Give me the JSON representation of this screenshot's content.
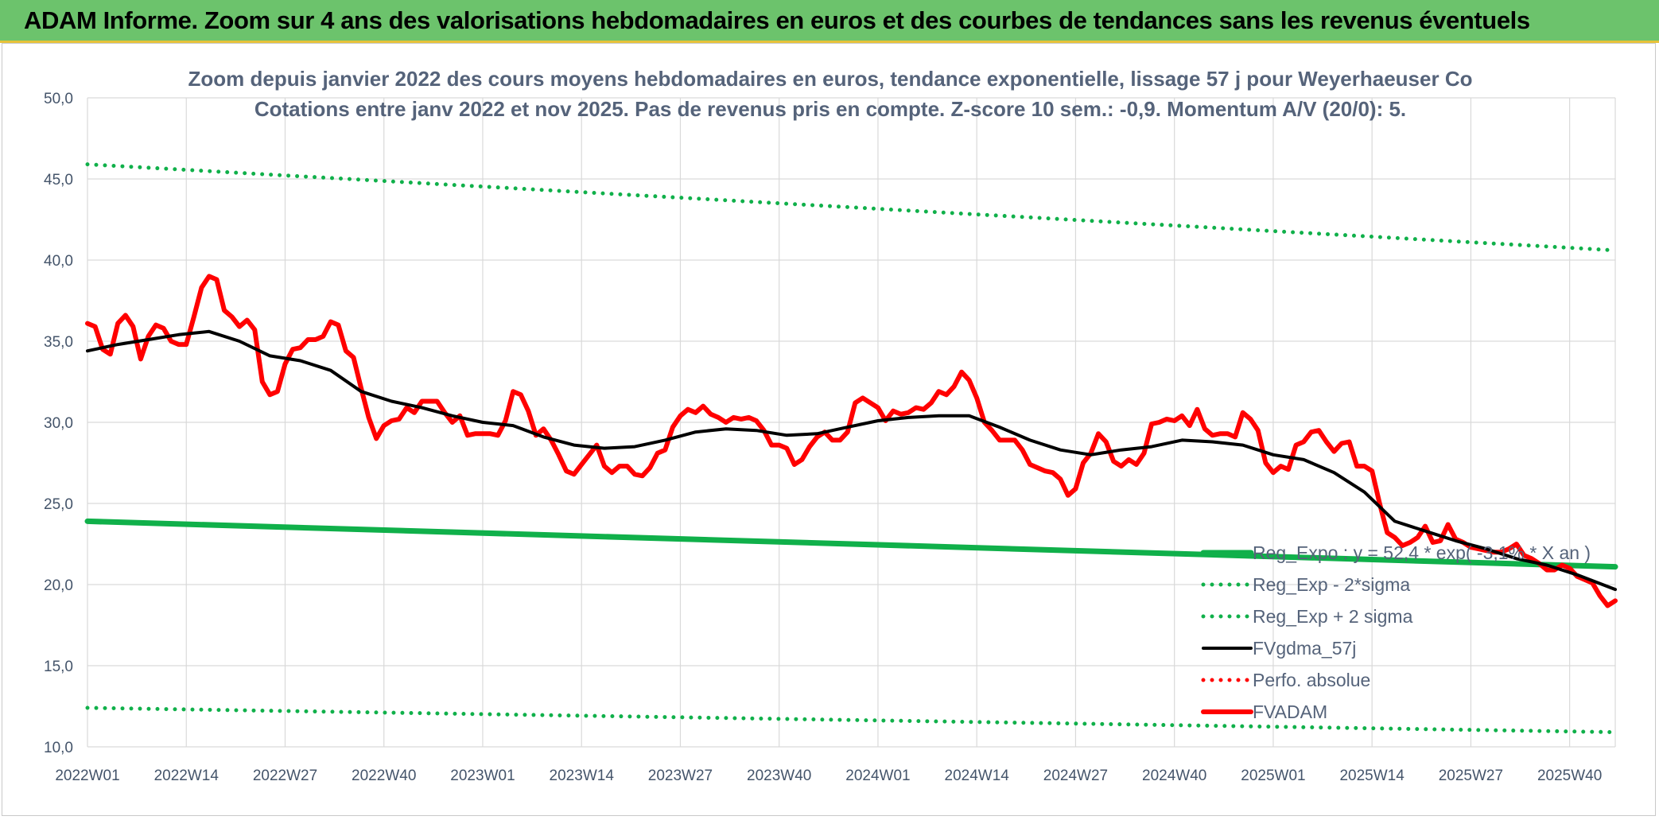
{
  "header": {
    "title": "ADAM Informe. Zoom sur 4 ans des valorisations hebdomadaires en euros et des courbes de tendances sans les revenus éventuels"
  },
  "colors": {
    "green": "#10b04a",
    "red": "#ff0000",
    "black": "#000000",
    "grid": "#d9d9d9",
    "banner": "#6cc36c"
  },
  "chart_data": {
    "type": "line",
    "title_line1": "Zoom depuis janvier 2022 des cours moyens hebdomadaires en euros, tendance exponentielle, lissage 57 j pour Weyerhaeuser Co",
    "title_line2": "Cotations entre janv 2022 et nov 2025. Pas de revenus pris en compte. Z-score 10 sem.: -0,9. Momentum A/V (20/0): 5.",
    "ylim": [
      10,
      50
    ],
    "y_ticks": [
      "10,0",
      "15,0",
      "20,0",
      "25,0",
      "30,0",
      "35,0",
      "40,0",
      "45,0",
      "50,0"
    ],
    "y_tick_values": [
      10,
      15,
      20,
      25,
      30,
      35,
      40,
      45,
      50
    ],
    "x_range_weeks": [
      0,
      201
    ],
    "x_ticks": [
      {
        "label": "2022W01",
        "week": 0
      },
      {
        "label": "2022W14",
        "week": 13
      },
      {
        "label": "2022W27",
        "week": 26
      },
      {
        "label": "2022W40",
        "week": 39
      },
      {
        "label": "2023W01",
        "week": 52
      },
      {
        "label": "2023W14",
        "week": 65
      },
      {
        "label": "2023W27",
        "week": 78
      },
      {
        "label": "2023W40",
        "week": 91
      },
      {
        "label": "2024W01",
        "week": 104
      },
      {
        "label": "2024W14",
        "week": 117
      },
      {
        "label": "2024W27",
        "week": 130
      },
      {
        "label": "2024W40",
        "week": 143
      },
      {
        "label": "2025W01",
        "week": 156
      },
      {
        "label": "2025W14",
        "week": 169
      },
      {
        "label": "2025W27",
        "week": 182
      },
      {
        "label": "2025W40",
        "week": 195
      }
    ],
    "series": [
      {
        "name": "Reg_Expo : y = 52,4 * exp( -3,1% * X  an )",
        "style": "solid-thick",
        "color": "#10b04a",
        "points": [
          [
            0,
            23.9
          ],
          [
            201,
            21.1
          ]
        ]
      },
      {
        "name": "Reg_Exp - 2*sigma",
        "style": "dotted",
        "color": "#10b04a",
        "points": [
          [
            0,
            12.4
          ],
          [
            201,
            10.9
          ]
        ]
      },
      {
        "name": "Reg_Exp + 2 sigma",
        "style": "dotted",
        "color": "#10b04a",
        "points": [
          [
            0,
            45.9
          ],
          [
            201,
            40.6
          ]
        ]
      },
      {
        "name": "FVgdma_57j",
        "style": "solid",
        "color": "#000000",
        "points": [
          [
            0,
            34.4
          ],
          [
            4,
            34.8
          ],
          [
            8,
            35.1
          ],
          [
            12,
            35.4
          ],
          [
            16,
            35.6
          ],
          [
            20,
            35.0
          ],
          [
            24,
            34.1
          ],
          [
            28,
            33.8
          ],
          [
            32,
            33.2
          ],
          [
            36,
            31.9
          ],
          [
            40,
            31.3
          ],
          [
            44,
            30.9
          ],
          [
            48,
            30.4
          ],
          [
            52,
            30.0
          ],
          [
            56,
            29.8
          ],
          [
            60,
            29.1
          ],
          [
            64,
            28.6
          ],
          [
            68,
            28.4
          ],
          [
            72,
            28.5
          ],
          [
            76,
            28.9
          ],
          [
            80,
            29.4
          ],
          [
            84,
            29.6
          ],
          [
            88,
            29.5
          ],
          [
            92,
            29.2
          ],
          [
            96,
            29.3
          ],
          [
            100,
            29.7
          ],
          [
            104,
            30.1
          ],
          [
            108,
            30.3
          ],
          [
            112,
            30.4
          ],
          [
            116,
            30.4
          ],
          [
            120,
            29.7
          ],
          [
            124,
            28.9
          ],
          [
            128,
            28.3
          ],
          [
            132,
            28.0
          ],
          [
            136,
            28.3
          ],
          [
            140,
            28.5
          ],
          [
            144,
            28.9
          ],
          [
            148,
            28.8
          ],
          [
            152,
            28.6
          ],
          [
            156,
            28.0
          ],
          [
            160,
            27.7
          ],
          [
            164,
            26.9
          ],
          [
            168,
            25.7
          ],
          [
            172,
            23.9
          ],
          [
            176,
            23.3
          ],
          [
            180,
            22.7
          ],
          [
            184,
            22.2
          ],
          [
            188,
            21.6
          ],
          [
            192,
            21.2
          ],
          [
            196,
            20.6
          ],
          [
            201,
            19.7
          ]
        ]
      },
      {
        "name": "Perfo. absolue",
        "style": "dotted",
        "color": "#ff0000",
        "points": []
      },
      {
        "name": "FVADAM",
        "style": "solid-thick",
        "color": "#ff0000",
        "points": [
          [
            0,
            36.1
          ],
          [
            1,
            35.9
          ],
          [
            2,
            34.5
          ],
          [
            3,
            34.2
          ],
          [
            4,
            36.1
          ],
          [
            5,
            36.6
          ],
          [
            6,
            35.9
          ],
          [
            7,
            33.9
          ],
          [
            8,
            35.3
          ],
          [
            9,
            36.0
          ],
          [
            10,
            35.8
          ],
          [
            11,
            35.0
          ],
          [
            12,
            34.8
          ],
          [
            13,
            34.8
          ],
          [
            14,
            36.5
          ],
          [
            15,
            38.3
          ],
          [
            16,
            39.0
          ],
          [
            17,
            38.8
          ],
          [
            18,
            36.9
          ],
          [
            19,
            36.5
          ],
          [
            20,
            35.9
          ],
          [
            21,
            36.3
          ],
          [
            22,
            35.7
          ],
          [
            23,
            32.5
          ],
          [
            24,
            31.7
          ],
          [
            25,
            31.9
          ],
          [
            26,
            33.6
          ],
          [
            27,
            34.5
          ],
          [
            28,
            34.6
          ],
          [
            29,
            35.1
          ],
          [
            30,
            35.1
          ],
          [
            31,
            35.3
          ],
          [
            32,
            36.2
          ],
          [
            33,
            36.0
          ],
          [
            34,
            34.4
          ],
          [
            35,
            34.0
          ],
          [
            36,
            32.1
          ],
          [
            37,
            30.3
          ],
          [
            38,
            29.0
          ],
          [
            39,
            29.8
          ],
          [
            40,
            30.1
          ],
          [
            41,
            30.2
          ],
          [
            42,
            30.9
          ],
          [
            43,
            30.6
          ],
          [
            44,
            31.3
          ],
          [
            45,
            31.3
          ],
          [
            46,
            31.3
          ],
          [
            47,
            30.6
          ],
          [
            48,
            30.0
          ],
          [
            49,
            30.4
          ],
          [
            50,
            29.2
          ],
          [
            51,
            29.3
          ],
          [
            52,
            29.3
          ],
          [
            53,
            29.3
          ],
          [
            54,
            29.2
          ],
          [
            55,
            30.1
          ],
          [
            56,
            31.9
          ],
          [
            57,
            31.7
          ],
          [
            58,
            30.7
          ],
          [
            59,
            29.2
          ],
          [
            60,
            29.6
          ],
          [
            61,
            28.9
          ],
          [
            62,
            28.0
          ],
          [
            63,
            27.0
          ],
          [
            64,
            26.8
          ],
          [
            65,
            27.4
          ],
          [
            66,
            28.0
          ],
          [
            67,
            28.6
          ],
          [
            68,
            27.3
          ],
          [
            69,
            26.9
          ],
          [
            70,
            27.3
          ],
          [
            71,
            27.3
          ],
          [
            72,
            26.8
          ],
          [
            73,
            26.7
          ],
          [
            74,
            27.2
          ],
          [
            75,
            28.1
          ],
          [
            76,
            28.3
          ],
          [
            77,
            29.7
          ],
          [
            78,
            30.4
          ],
          [
            79,
            30.8
          ],
          [
            80,
            30.6
          ],
          [
            81,
            31.0
          ],
          [
            82,
            30.5
          ],
          [
            83,
            30.3
          ],
          [
            84,
            30.0
          ],
          [
            85,
            30.3
          ],
          [
            86,
            30.2
          ],
          [
            87,
            30.3
          ],
          [
            88,
            30.1
          ],
          [
            89,
            29.5
          ],
          [
            90,
            28.6
          ],
          [
            91,
            28.6
          ],
          [
            92,
            28.4
          ],
          [
            93,
            27.4
          ],
          [
            94,
            27.7
          ],
          [
            95,
            28.5
          ],
          [
            96,
            29.1
          ],
          [
            97,
            29.4
          ],
          [
            98,
            28.9
          ],
          [
            99,
            28.9
          ],
          [
            100,
            29.4
          ],
          [
            101,
            31.2
          ],
          [
            102,
            31.5
          ],
          [
            103,
            31.2
          ],
          [
            104,
            30.9
          ],
          [
            105,
            30.1
          ],
          [
            106,
            30.7
          ],
          [
            107,
            30.5
          ],
          [
            108,
            30.6
          ],
          [
            109,
            30.9
          ],
          [
            110,
            30.8
          ],
          [
            111,
            31.2
          ],
          [
            112,
            31.9
          ],
          [
            113,
            31.7
          ],
          [
            114,
            32.2
          ],
          [
            115,
            33.1
          ],
          [
            116,
            32.6
          ],
          [
            117,
            31.5
          ],
          [
            118,
            30.0
          ],
          [
            119,
            29.5
          ],
          [
            120,
            28.9
          ],
          [
            121,
            28.9
          ],
          [
            122,
            28.9
          ],
          [
            123,
            28.3
          ],
          [
            124,
            27.4
          ],
          [
            125,
            27.2
          ],
          [
            126,
            27.0
          ],
          [
            127,
            26.9
          ],
          [
            128,
            26.5
          ],
          [
            129,
            25.5
          ],
          [
            130,
            25.9
          ],
          [
            131,
            27.5
          ],
          [
            132,
            28.1
          ],
          [
            133,
            29.3
          ],
          [
            134,
            28.8
          ],
          [
            135,
            27.6
          ],
          [
            136,
            27.3
          ],
          [
            137,
            27.7
          ],
          [
            138,
            27.4
          ],
          [
            139,
            28.1
          ],
          [
            140,
            29.9
          ],
          [
            141,
            30.0
          ],
          [
            142,
            30.2
          ],
          [
            143,
            30.1
          ],
          [
            144,
            30.4
          ],
          [
            145,
            29.8
          ],
          [
            146,
            30.8
          ],
          [
            147,
            29.6
          ],
          [
            148,
            29.2
          ],
          [
            149,
            29.3
          ],
          [
            150,
            29.3
          ],
          [
            151,
            29.1
          ],
          [
            152,
            30.6
          ],
          [
            153,
            30.2
          ],
          [
            154,
            29.5
          ],
          [
            155,
            27.5
          ],
          [
            156,
            26.9
          ],
          [
            157,
            27.3
          ],
          [
            158,
            27.1
          ],
          [
            159,
            28.6
          ],
          [
            160,
            28.8
          ],
          [
            161,
            29.4
          ],
          [
            162,
            29.5
          ],
          [
            163,
            28.8
          ],
          [
            164,
            28.2
          ],
          [
            165,
            28.7
          ],
          [
            166,
            28.8
          ],
          [
            167,
            27.3
          ],
          [
            168,
            27.3
          ],
          [
            169,
            27.0
          ],
          [
            170,
            25.0
          ],
          [
            171,
            23.2
          ],
          [
            172,
            22.9
          ],
          [
            173,
            22.4
          ],
          [
            174,
            22.6
          ],
          [
            175,
            22.9
          ],
          [
            176,
            23.6
          ],
          [
            177,
            22.6
          ],
          [
            178,
            22.7
          ],
          [
            179,
            23.7
          ],
          [
            180,
            22.8
          ],
          [
            181,
            22.6
          ],
          [
            182,
            22.3
          ],
          [
            183,
            22.2
          ],
          [
            184,
            22.1
          ],
          [
            185,
            22.0
          ],
          [
            186,
            22.0
          ],
          [
            187,
            22.2
          ],
          [
            188,
            22.5
          ],
          [
            189,
            21.8
          ],
          [
            190,
            21.6
          ],
          [
            191,
            21.3
          ],
          [
            192,
            20.9
          ],
          [
            193,
            20.9
          ],
          [
            194,
            21.2
          ],
          [
            195,
            21.0
          ],
          [
            196,
            20.5
          ],
          [
            197,
            20.3
          ],
          [
            198,
            20.1
          ],
          [
            199,
            19.3
          ],
          [
            200,
            18.7
          ],
          [
            201,
            19.0
          ]
        ]
      }
    ],
    "legend_position": "bottom-right"
  }
}
